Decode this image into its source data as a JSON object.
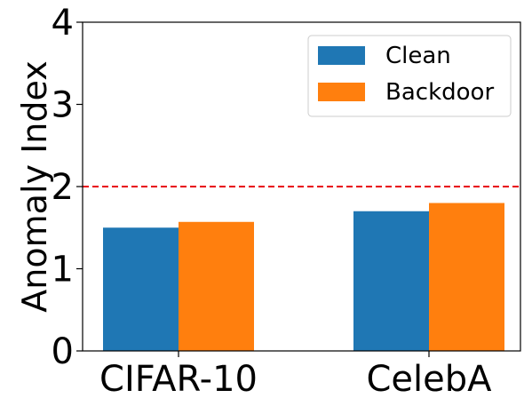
{
  "chart_data": {
    "type": "bar",
    "title": "",
    "xlabel": "",
    "ylabel": "Anomaly Index",
    "categories": [
      "CIFAR-10",
      "CelebA"
    ],
    "series": [
      {
        "name": "Clean",
        "values": [
          1.5,
          1.7
        ],
        "color": "#1f77b4"
      },
      {
        "name": "Backdoor",
        "values": [
          1.57,
          1.8
        ],
        "color": "#ff7f0e"
      }
    ],
    "ylim": [
      0,
      4
    ],
    "yticks": [
      "0",
      "1",
      "2",
      "3",
      "4"
    ],
    "threshold": {
      "value": 2,
      "color": "#e8000b",
      "style": "dashed"
    },
    "grid": false,
    "legend_position": "top-right"
  }
}
